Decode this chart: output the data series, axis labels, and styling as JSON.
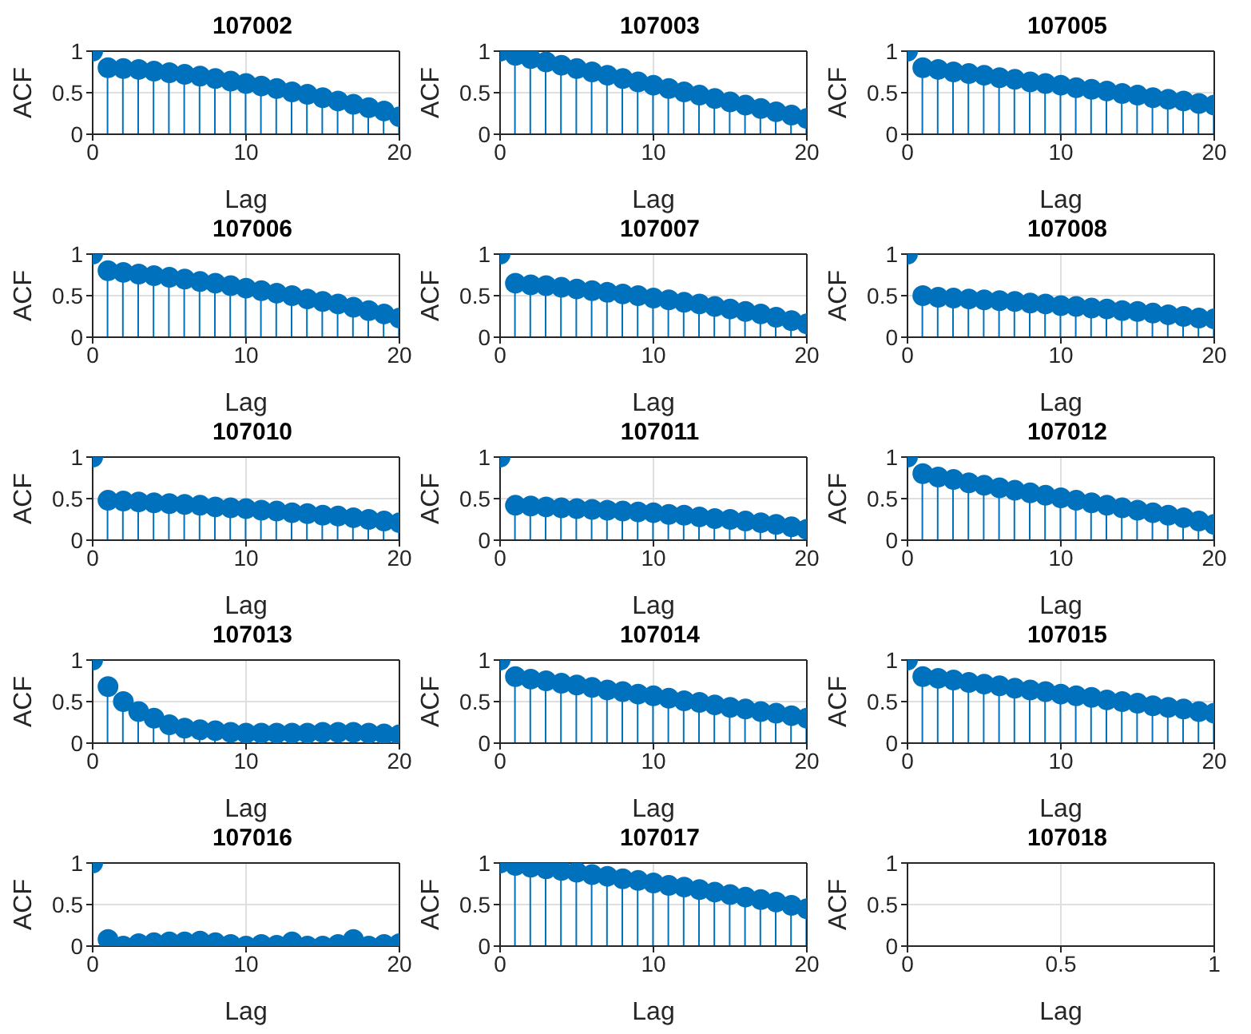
{
  "chart_data": [
    {
      "type": "lollipop",
      "title": "107002",
      "xlabel": "Lag",
      "ylabel": "ACF",
      "color": "#0072bd",
      "marker": "circle",
      "grid": true,
      "xlim": [
        0,
        20
      ],
      "xticks": [
        0,
        10,
        20
      ],
      "ylim": [
        0,
        1
      ],
      "yticks": [
        0,
        0.5,
        1
      ],
      "x": [
        0,
        1,
        2,
        3,
        4,
        5,
        6,
        7,
        8,
        9,
        10,
        11,
        12,
        13,
        14,
        15,
        16,
        17,
        18,
        19,
        20
      ],
      "values": [
        1,
        0.8,
        0.79,
        0.78,
        0.76,
        0.74,
        0.72,
        0.7,
        0.67,
        0.64,
        0.61,
        0.58,
        0.55,
        0.51,
        0.48,
        0.44,
        0.4,
        0.36,
        0.32,
        0.28,
        0.21
      ]
    },
    {
      "type": "lollipop",
      "title": "107003",
      "xlabel": "Lag",
      "ylabel": "ACF",
      "color": "#0072bd",
      "marker": "circle",
      "grid": true,
      "xlim": [
        0,
        20
      ],
      "xticks": [
        0,
        10,
        20
      ],
      "ylim": [
        0,
        1
      ],
      "yticks": [
        0,
        0.5,
        1
      ],
      "x": [
        0,
        1,
        2,
        3,
        4,
        5,
        6,
        7,
        8,
        9,
        10,
        11,
        12,
        13,
        14,
        15,
        16,
        17,
        18,
        19,
        20
      ],
      "values": [
        1,
        0.95,
        0.91,
        0.87,
        0.83,
        0.79,
        0.75,
        0.71,
        0.67,
        0.63,
        0.59,
        0.55,
        0.51,
        0.47,
        0.43,
        0.39,
        0.35,
        0.31,
        0.27,
        0.23,
        0.19
      ]
    },
    {
      "type": "lollipop",
      "title": "107005",
      "xlabel": "Lag",
      "ylabel": "ACF",
      "color": "#0072bd",
      "marker": "circle",
      "grid": true,
      "xlim": [
        0,
        20
      ],
      "xticks": [
        0,
        10,
        20
      ],
      "ylim": [
        0,
        1
      ],
      "yticks": [
        0,
        0.5,
        1
      ],
      "x": [
        0,
        1,
        2,
        3,
        4,
        5,
        6,
        7,
        8,
        9,
        10,
        11,
        12,
        13,
        14,
        15,
        16,
        17,
        18,
        19,
        20
      ],
      "values": [
        1,
        0.8,
        0.78,
        0.75,
        0.73,
        0.71,
        0.68,
        0.66,
        0.63,
        0.61,
        0.59,
        0.56,
        0.54,
        0.52,
        0.49,
        0.47,
        0.44,
        0.42,
        0.4,
        0.37,
        0.35
      ]
    },
    {
      "type": "lollipop",
      "title": "107006",
      "xlabel": "Lag",
      "ylabel": "ACF",
      "color": "#0072bd",
      "marker": "circle",
      "grid": true,
      "xlim": [
        0,
        20
      ],
      "xticks": [
        0,
        10,
        20
      ],
      "ylim": [
        0,
        1
      ],
      "yticks": [
        0,
        0.5,
        1
      ],
      "x": [
        0,
        1,
        2,
        3,
        4,
        5,
        6,
        7,
        8,
        9,
        10,
        11,
        12,
        13,
        14,
        15,
        16,
        17,
        18,
        19,
        20
      ],
      "values": [
        1,
        0.8,
        0.78,
        0.76,
        0.74,
        0.72,
        0.7,
        0.67,
        0.65,
        0.62,
        0.59,
        0.56,
        0.53,
        0.5,
        0.46,
        0.43,
        0.4,
        0.36,
        0.32,
        0.28,
        0.23
      ]
    },
    {
      "type": "lollipop",
      "title": "107007",
      "xlabel": "Lag",
      "ylabel": "ACF",
      "color": "#0072bd",
      "marker": "circle",
      "grid": true,
      "xlim": [
        0,
        20
      ],
      "xticks": [
        0,
        10,
        20
      ],
      "ylim": [
        0,
        1
      ],
      "yticks": [
        0,
        0.5,
        1
      ],
      "x": [
        0,
        1,
        2,
        3,
        4,
        5,
        6,
        7,
        8,
        9,
        10,
        11,
        12,
        13,
        14,
        15,
        16,
        17,
        18,
        19,
        20
      ],
      "values": [
        1,
        0.65,
        0.63,
        0.62,
        0.6,
        0.58,
        0.56,
        0.54,
        0.52,
        0.5,
        0.47,
        0.45,
        0.42,
        0.4,
        0.37,
        0.34,
        0.31,
        0.28,
        0.24,
        0.2,
        0.16
      ]
    },
    {
      "type": "lollipop",
      "title": "107008",
      "xlabel": "Lag",
      "ylabel": "ACF",
      "color": "#0072bd",
      "marker": "circle",
      "grid": true,
      "xlim": [
        0,
        20
      ],
      "xticks": [
        0,
        10,
        20
      ],
      "ylim": [
        0,
        1
      ],
      "yticks": [
        0,
        0.5,
        1
      ],
      "x": [
        0,
        1,
        2,
        3,
        4,
        5,
        6,
        7,
        8,
        9,
        10,
        11,
        12,
        13,
        14,
        15,
        16,
        17,
        18,
        19,
        20
      ],
      "values": [
        1,
        0.5,
        0.48,
        0.47,
        0.46,
        0.45,
        0.44,
        0.43,
        0.41,
        0.4,
        0.38,
        0.37,
        0.35,
        0.34,
        0.32,
        0.31,
        0.29,
        0.27,
        0.25,
        0.23,
        0.22
      ]
    },
    {
      "type": "lollipop",
      "title": "107010",
      "xlabel": "Lag",
      "ylabel": "ACF",
      "color": "#0072bd",
      "marker": "circle",
      "grid": true,
      "xlim": [
        0,
        20
      ],
      "xticks": [
        0,
        10,
        20
      ],
      "ylim": [
        0,
        1
      ],
      "yticks": [
        0,
        0.5,
        1
      ],
      "x": [
        0,
        1,
        2,
        3,
        4,
        5,
        6,
        7,
        8,
        9,
        10,
        11,
        12,
        13,
        14,
        15,
        16,
        17,
        18,
        19,
        20
      ],
      "values": [
        1,
        0.48,
        0.47,
        0.46,
        0.45,
        0.44,
        0.43,
        0.42,
        0.4,
        0.39,
        0.38,
        0.36,
        0.35,
        0.33,
        0.32,
        0.3,
        0.29,
        0.27,
        0.25,
        0.23,
        0.21
      ]
    },
    {
      "type": "lollipop",
      "title": "107011",
      "xlabel": "Lag",
      "ylabel": "ACF",
      "color": "#0072bd",
      "marker": "circle",
      "grid": true,
      "xlim": [
        0,
        20
      ],
      "xticks": [
        0,
        10,
        20
      ],
      "ylim": [
        0,
        1
      ],
      "yticks": [
        0,
        0.5,
        1
      ],
      "x": [
        0,
        1,
        2,
        3,
        4,
        5,
        6,
        7,
        8,
        9,
        10,
        11,
        12,
        13,
        14,
        15,
        16,
        17,
        18,
        19,
        20
      ],
      "values": [
        1,
        0.42,
        0.41,
        0.4,
        0.39,
        0.38,
        0.37,
        0.36,
        0.35,
        0.34,
        0.33,
        0.31,
        0.3,
        0.28,
        0.26,
        0.25,
        0.23,
        0.21,
        0.19,
        0.16,
        0.13
      ]
    },
    {
      "type": "lollipop",
      "title": "107012",
      "xlabel": "Lag",
      "ylabel": "ACF",
      "color": "#0072bd",
      "marker": "circle",
      "grid": true,
      "xlim": [
        0,
        20
      ],
      "xticks": [
        0,
        10,
        20
      ],
      "ylim": [
        0,
        1
      ],
      "yticks": [
        0,
        0.5,
        1
      ],
      "x": [
        0,
        1,
        2,
        3,
        4,
        5,
        6,
        7,
        8,
        9,
        10,
        11,
        12,
        13,
        14,
        15,
        16,
        17,
        18,
        19,
        20
      ],
      "values": [
        1,
        0.8,
        0.76,
        0.73,
        0.69,
        0.66,
        0.63,
        0.6,
        0.57,
        0.54,
        0.51,
        0.48,
        0.45,
        0.42,
        0.39,
        0.36,
        0.33,
        0.3,
        0.27,
        0.23,
        0.19
      ]
    },
    {
      "type": "lollipop",
      "title": "107013",
      "xlabel": "Lag",
      "ylabel": "ACF",
      "color": "#0072bd",
      "marker": "circle",
      "grid": true,
      "xlim": [
        0,
        20
      ],
      "xticks": [
        0,
        10,
        20
      ],
      "ylim": [
        0,
        1
      ],
      "yticks": [
        0,
        0.5,
        1
      ],
      "x": [
        0,
        1,
        2,
        3,
        4,
        5,
        6,
        7,
        8,
        9,
        10,
        11,
        12,
        13,
        14,
        15,
        16,
        17,
        18,
        19,
        20
      ],
      "values": [
        1,
        0.68,
        0.5,
        0.38,
        0.3,
        0.22,
        0.18,
        0.16,
        0.15,
        0.13,
        0.12,
        0.12,
        0.12,
        0.12,
        0.12,
        0.13,
        0.13,
        0.13,
        0.12,
        0.11,
        0.1
      ]
    },
    {
      "type": "lollipop",
      "title": "107014",
      "xlabel": "Lag",
      "ylabel": "ACF",
      "color": "#0072bd",
      "marker": "circle",
      "grid": true,
      "xlim": [
        0,
        20
      ],
      "xticks": [
        0,
        10,
        20
      ],
      "ylim": [
        0,
        1
      ],
      "yticks": [
        0,
        0.5,
        1
      ],
      "x": [
        0,
        1,
        2,
        3,
        4,
        5,
        6,
        7,
        8,
        9,
        10,
        11,
        12,
        13,
        14,
        15,
        16,
        17,
        18,
        19,
        20
      ],
      "values": [
        1,
        0.8,
        0.77,
        0.75,
        0.72,
        0.7,
        0.67,
        0.64,
        0.62,
        0.59,
        0.57,
        0.54,
        0.51,
        0.49,
        0.46,
        0.43,
        0.41,
        0.38,
        0.36,
        0.33,
        0.3
      ]
    },
    {
      "type": "lollipop",
      "title": "107015",
      "xlabel": "Lag",
      "ylabel": "ACF",
      "color": "#0072bd",
      "marker": "circle",
      "grid": true,
      "xlim": [
        0,
        20
      ],
      "xticks": [
        0,
        10,
        20
      ],
      "ylim": [
        0,
        1
      ],
      "yticks": [
        0,
        0.5,
        1
      ],
      "x": [
        0,
        1,
        2,
        3,
        4,
        5,
        6,
        7,
        8,
        9,
        10,
        11,
        12,
        13,
        14,
        15,
        16,
        17,
        18,
        19,
        20
      ],
      "values": [
        1,
        0.8,
        0.78,
        0.76,
        0.73,
        0.71,
        0.69,
        0.66,
        0.64,
        0.62,
        0.59,
        0.57,
        0.55,
        0.52,
        0.5,
        0.48,
        0.45,
        0.43,
        0.41,
        0.38,
        0.36
      ]
    },
    {
      "type": "lollipop",
      "title": "107016",
      "xlabel": "Lag",
      "ylabel": "ACF",
      "color": "#0072bd",
      "marker": "circle",
      "grid": true,
      "xlim": [
        0,
        20
      ],
      "xticks": [
        0,
        10,
        20
      ],
      "ylim": [
        0,
        1
      ],
      "yticks": [
        0,
        0.5,
        1
      ],
      "x": [
        0,
        1,
        2,
        3,
        4,
        5,
        6,
        7,
        8,
        9,
        10,
        11,
        12,
        13,
        14,
        15,
        16,
        17,
        18,
        19,
        20
      ],
      "values": [
        1,
        0.08,
        0,
        0.03,
        0.04,
        0.05,
        0.05,
        0.06,
        0.04,
        0.02,
        0,
        0.02,
        0.01,
        0.05,
        0,
        0,
        0.02,
        0.08,
        0,
        0.02,
        0.03
      ]
    },
    {
      "type": "lollipop",
      "title": "107017",
      "xlabel": "Lag",
      "ylabel": "ACF",
      "color": "#0072bd",
      "marker": "circle",
      "grid": true,
      "xlim": [
        0,
        20
      ],
      "xticks": [
        0,
        10,
        20
      ],
      "ylim": [
        0,
        1
      ],
      "yticks": [
        0,
        0.5,
        1
      ],
      "x": [
        0,
        1,
        2,
        3,
        4,
        5,
        6,
        7,
        8,
        9,
        10,
        11,
        12,
        13,
        14,
        15,
        16,
        17,
        18,
        19,
        20
      ],
      "values": [
        1,
        0.97,
        0.95,
        0.93,
        0.91,
        0.89,
        0.86,
        0.84,
        0.81,
        0.79,
        0.76,
        0.73,
        0.71,
        0.68,
        0.65,
        0.62,
        0.59,
        0.56,
        0.53,
        0.49,
        0.45
      ]
    },
    {
      "type": "lollipop",
      "title": "107018",
      "xlabel": "Lag",
      "ylabel": "ACF",
      "grid": true,
      "xlim": [
        0,
        1
      ],
      "xticks": [
        0,
        0.5,
        1
      ],
      "ylim": [
        0,
        1
      ],
      "yticks": [
        0,
        0.5,
        1
      ]
    }
  ]
}
